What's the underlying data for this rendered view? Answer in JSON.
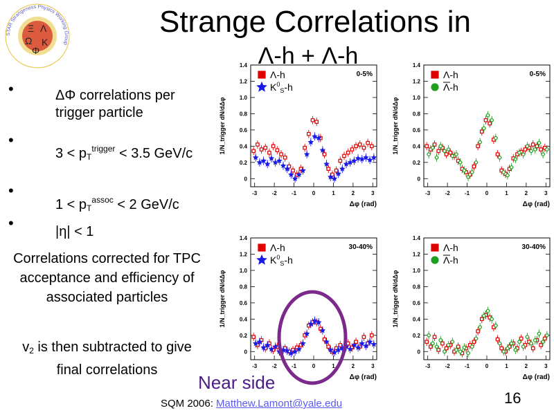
{
  "title": {
    "line1": "Strange Correlations in",
    "line2": "Λ-h + Λ-h"
  },
  "logo": {
    "ring_text": "STAR Strangeness Physics Working Group",
    "colors": [
      "#d63a2a",
      "#e8c23a",
      "#2a2a2a"
    ]
  },
  "bullets": [
    {
      "pre": "ΔΦ correlations per trigger particle"
    },
    {
      "pre": "3 < p",
      "sub": "T",
      "sup": "trigger",
      "post": " < 3.5 GeV/c"
    },
    {
      "pre": "1 < p",
      "sub": "T",
      "sup": "assoc",
      "post": " < 2 GeV/c"
    },
    {
      "pre": "|η| < 1"
    }
  ],
  "notes": {
    "corrections": "Correlations corrected for TPC acceptance and efficiency of associated particles",
    "v2_pre": "v",
    "v2_sub": "2",
    "v2_post": " is then subtracted to give final correlations"
  },
  "near_side": "Near side",
  "footer": {
    "prefix": "SQM 2006: ",
    "email": "Matthew.Lamont@yale.edu"
  },
  "page_number": "16",
  "chart_data": [
    {
      "type": "scatter",
      "centrality": "0-5%",
      "ylabel": "1/N_trigger dN/dΔφ",
      "xlabel": "Δφ (rad)",
      "xlim": [
        -3.2,
        3.2
      ],
      "ylim": [
        -0.1,
        1.4
      ],
      "yticks": [
        0,
        0.2,
        0.4,
        0.6,
        0.8,
        1.0,
        1.2,
        1.4
      ],
      "xticks": [
        -3,
        -2,
        -1,
        0,
        1,
        2,
        3
      ],
      "legend": [
        {
          "label_pre": "Λ-h",
          "label_sup": "",
          "label_sub": "",
          "label_post": "",
          "marker": "square",
          "color": "#e00000"
        },
        {
          "label_pre": "K",
          "label_sup": "0",
          "label_sub": "S",
          "label_post": "-h",
          "marker": "star",
          "color": "#1a1ae6"
        }
      ],
      "series": [
        {
          "name": "Λ-h",
          "marker": "square",
          "color": "#e00000",
          "x": [
            -3.0,
            -2.8,
            -2.6,
            -2.4,
            -2.2,
            -2.0,
            -1.8,
            -1.6,
            -1.4,
            -1.2,
            -1.0,
            -0.8,
            -0.6,
            -0.4,
            -0.2,
            0.0,
            0.2,
            0.4,
            0.6,
            0.8,
            1.0,
            1.2,
            1.4,
            1.6,
            1.8,
            2.0,
            2.2,
            2.4,
            2.6,
            2.8,
            3.0
          ],
          "y": [
            0.34,
            0.42,
            0.36,
            0.38,
            0.32,
            0.4,
            0.35,
            0.3,
            0.26,
            0.15,
            0.1,
            0.05,
            0.12,
            0.38,
            0.55,
            0.72,
            0.7,
            0.5,
            0.3,
            0.12,
            0.05,
            0.1,
            0.22,
            0.28,
            0.32,
            0.36,
            0.4,
            0.42,
            0.38,
            0.44,
            0.4
          ]
        },
        {
          "name": "K0S-h",
          "marker": "star",
          "color": "#1a1ae6",
          "x": [
            -3.0,
            -2.8,
            -2.6,
            -2.4,
            -2.2,
            -2.0,
            -1.8,
            -1.6,
            -1.4,
            -1.2,
            -1.0,
            -0.8,
            -0.6,
            -0.4,
            -0.2,
            0.0,
            0.2,
            0.4,
            0.6,
            0.8,
            1.0,
            1.2,
            1.4,
            1.6,
            1.8,
            2.0,
            2.2,
            2.4,
            2.6,
            2.8,
            3.0
          ],
          "y": [
            0.26,
            0.2,
            0.22,
            0.18,
            0.25,
            0.2,
            0.22,
            0.16,
            0.12,
            0.05,
            0.0,
            0.05,
            0.1,
            0.3,
            0.45,
            0.52,
            0.5,
            0.35,
            0.18,
            0.02,
            0.0,
            0.06,
            0.12,
            0.18,
            0.2,
            0.22,
            0.25,
            0.24,
            0.26,
            0.23,
            0.26
          ]
        }
      ]
    },
    {
      "type": "scatter",
      "centrality": "0-5%",
      "ylabel": "1/N_trigger dN/dΔφ",
      "xlabel": "Δφ (rad)",
      "xlim": [
        -3.2,
        3.2
      ],
      "ylim": [
        -0.1,
        1.4
      ],
      "yticks": [
        0,
        0.2,
        0.4,
        0.6,
        0.8,
        1.0,
        1.2,
        1.4
      ],
      "xticks": [
        -3,
        -2,
        -1,
        0,
        1,
        2,
        3
      ],
      "legend": [
        {
          "label_pre": "Λ-h",
          "label_sup": "",
          "label_sub": "",
          "label_post": "",
          "marker": "square",
          "color": "#e00000"
        },
        {
          "label_pre": "Λ-h",
          "label_sup": "",
          "label_sub": "",
          "label_post": "",
          "marker": "circle",
          "color": "#1f9e1f",
          "overline": true
        }
      ],
      "series": [
        {
          "name": "Λ-h",
          "marker": "square",
          "color": "#e00000",
          "x": [
            -3.0,
            -2.8,
            -2.6,
            -2.4,
            -2.2,
            -2.0,
            -1.8,
            -1.6,
            -1.4,
            -1.2,
            -1.0,
            -0.8,
            -0.6,
            -0.4,
            -0.2,
            0.0,
            0.2,
            0.4,
            0.6,
            0.8,
            1.0,
            1.2,
            1.4,
            1.6,
            1.8,
            2.0,
            2.2,
            2.4,
            2.6,
            2.8,
            3.0
          ],
          "y": [
            0.4,
            0.36,
            0.42,
            0.34,
            0.38,
            0.3,
            0.32,
            0.28,
            0.22,
            0.12,
            0.08,
            0.05,
            0.15,
            0.4,
            0.58,
            0.72,
            0.68,
            0.48,
            0.3,
            0.1,
            0.06,
            0.12,
            0.25,
            0.3,
            0.33,
            0.36,
            0.38,
            0.42,
            0.4,
            0.36,
            0.38
          ]
        },
        {
          "name": "anti-Λ-h",
          "marker": "circle",
          "color": "#1f9e1f",
          "x": [
            -3.0,
            -2.8,
            -2.6,
            -2.4,
            -2.2,
            -2.0,
            -1.8,
            -1.6,
            -1.4,
            -1.2,
            -1.0,
            -0.8,
            -0.6,
            -0.4,
            -0.2,
            0.0,
            0.2,
            0.4,
            0.6,
            0.8,
            1.0,
            1.2,
            1.4,
            1.6,
            1.8,
            2.0,
            2.2,
            2.4,
            2.6,
            2.8,
            3.0
          ],
          "y": [
            0.3,
            0.38,
            0.26,
            0.4,
            0.34,
            0.36,
            0.28,
            0.3,
            0.2,
            0.1,
            0.02,
            0.08,
            0.2,
            0.45,
            0.62,
            0.78,
            0.72,
            0.5,
            0.26,
            0.08,
            0.04,
            0.14,
            0.24,
            0.32,
            0.3,
            0.4,
            0.34,
            0.36,
            0.44,
            0.3,
            0.36
          ]
        }
      ]
    },
    {
      "type": "scatter",
      "centrality": "30-40%",
      "ylabel": "1/N_trigger dN/dΔφ",
      "xlabel": "Δφ (rad)",
      "xlim": [
        -3.2,
        3.2
      ],
      "ylim": [
        -0.1,
        1.4
      ],
      "yticks": [
        0,
        0.2,
        0.4,
        0.6,
        0.8,
        1.0,
        1.2,
        1.4
      ],
      "xticks": [
        -3,
        -2,
        -1,
        0,
        1,
        2,
        3
      ],
      "legend": [
        {
          "label_pre": "Λ-h",
          "label_sup": "",
          "label_sub": "",
          "label_post": "",
          "marker": "square",
          "color": "#e00000"
        },
        {
          "label_pre": "K",
          "label_sup": "0",
          "label_sub": "S",
          "label_post": "-h",
          "marker": "star",
          "color": "#1a1ae6"
        }
      ],
      "series": [
        {
          "name": "Λ-h",
          "marker": "square",
          "color": "#e00000",
          "x": [
            -3.0,
            -2.8,
            -2.6,
            -2.4,
            -2.2,
            -2.0,
            -1.8,
            -1.6,
            -1.4,
            -1.2,
            -1.0,
            -0.8,
            -0.6,
            -0.4,
            -0.2,
            0.0,
            0.2,
            0.4,
            0.6,
            0.8,
            1.0,
            1.2,
            1.4,
            1.6,
            1.8,
            2.0,
            2.2,
            2.4,
            2.6,
            2.8,
            3.0
          ],
          "y": [
            0.18,
            0.08,
            0.14,
            0.04,
            0.1,
            0.02,
            0.06,
            -0.02,
            0.04,
            0.0,
            0.02,
            0.05,
            0.08,
            0.2,
            0.32,
            0.36,
            0.36,
            0.28,
            0.15,
            0.06,
            0.0,
            0.04,
            0.08,
            0.02,
            0.1,
            0.05,
            0.12,
            0.06,
            0.18,
            0.1,
            0.2
          ]
        },
        {
          "name": "K0S-h",
          "marker": "star",
          "color": "#1a1ae6",
          "x": [
            -3.0,
            -2.8,
            -2.6,
            -2.4,
            -2.2,
            -2.0,
            -1.8,
            -1.6,
            -1.4,
            -1.2,
            -1.0,
            -0.8,
            -0.6,
            -0.4,
            -0.2,
            0.0,
            0.2,
            0.4,
            0.6,
            0.8,
            1.0,
            1.2,
            1.4,
            1.6,
            1.8,
            2.0,
            2.2,
            2.4,
            2.6,
            2.8,
            3.0
          ],
          "y": [
            0.1,
            0.12,
            0.05,
            0.08,
            0.03,
            0.06,
            0.0,
            0.02,
            0.01,
            -0.02,
            0.0,
            0.03,
            0.1,
            0.22,
            0.34,
            0.38,
            0.36,
            0.26,
            0.12,
            0.02,
            -0.01,
            0.02,
            0.04,
            0.06,
            0.03,
            0.08,
            0.05,
            0.1,
            0.07,
            0.12,
            0.09
          ]
        }
      ]
    },
    {
      "type": "scatter",
      "centrality": "30-40%",
      "ylabel": "1/N_trigger dN/dΔφ",
      "xlabel": "Δφ (rad)",
      "xlim": [
        -3.2,
        3.2
      ],
      "ylim": [
        -0.1,
        1.4
      ],
      "yticks": [
        0,
        0.2,
        0.4,
        0.6,
        0.8,
        1.0,
        1.2,
        1.4
      ],
      "xticks": [
        -3,
        -2,
        -1,
        0,
        1,
        2,
        3
      ],
      "legend": [
        {
          "label_pre": "Λ-h",
          "label_sup": "",
          "label_sub": "",
          "label_post": "",
          "marker": "square",
          "color": "#e00000"
        },
        {
          "label_pre": "Λ-h",
          "label_sup": "",
          "label_sub": "",
          "label_post": "",
          "marker": "circle",
          "color": "#1f9e1f",
          "overline": true
        }
      ],
      "series": [
        {
          "name": "Λ-h",
          "marker": "square",
          "color": "#e00000",
          "x": [
            -3.0,
            -2.8,
            -2.6,
            -2.4,
            -2.2,
            -2.0,
            -1.8,
            -1.6,
            -1.4,
            -1.2,
            -1.0,
            -0.8,
            -0.6,
            -0.4,
            -0.2,
            0.0,
            0.2,
            0.4,
            0.6,
            0.8,
            1.0,
            1.2,
            1.4,
            1.6,
            1.8,
            2.0,
            2.2,
            2.4,
            2.6,
            2.8,
            3.0
          ],
          "y": [
            0.12,
            0.06,
            0.18,
            0.02,
            0.1,
            0.04,
            0.08,
            0.0,
            0.06,
            -0.02,
            0.04,
            0.08,
            0.12,
            0.25,
            0.4,
            0.45,
            0.42,
            0.3,
            0.15,
            0.04,
            0.0,
            0.06,
            0.1,
            0.04,
            0.16,
            0.08,
            0.12,
            0.04,
            0.14,
            0.08,
            0.16
          ]
        },
        {
          "name": "anti-Λ-h",
          "marker": "circle",
          "color": "#1f9e1f",
          "x": [
            -3.0,
            -2.8,
            -2.6,
            -2.4,
            -2.2,
            -2.0,
            -1.8,
            -1.6,
            -1.4,
            -1.2,
            -1.0,
            -0.8,
            -0.6,
            -0.4,
            -0.2,
            0.0,
            0.2,
            0.4,
            0.6,
            0.8,
            1.0,
            1.2,
            1.4,
            1.6,
            1.8,
            2.0,
            2.2,
            2.4,
            2.6,
            2.8,
            3.0
          ],
          "y": [
            0.2,
            0.1,
            0.06,
            0.14,
            0.0,
            0.08,
            0.12,
            0.02,
            0.0,
            0.05,
            -0.02,
            0.06,
            0.16,
            0.3,
            0.44,
            0.5,
            0.4,
            0.32,
            0.1,
            0.0,
            0.04,
            0.1,
            0.02,
            0.12,
            0.06,
            0.18,
            0.1,
            0.14,
            0.22,
            0.12,
            0.2
          ]
        }
      ]
    }
  ]
}
